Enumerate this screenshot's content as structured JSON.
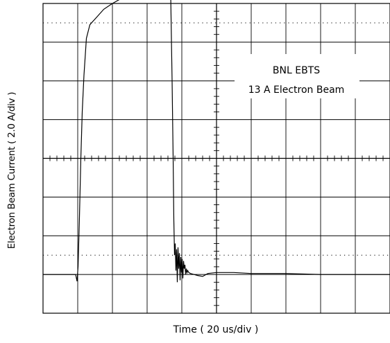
{
  "chart_data": {
    "type": "line",
    "title": "",
    "annotation": [
      "BNL  EBTS",
      "13 A  Electron Beam"
    ],
    "xlabel": "Time  ( 20 us/div )",
    "ylabel": "Electron Beam Current  ( 2.0  A/div )",
    "x_units_per_div": 20,
    "y_units_per_div": 2.0,
    "xlim": [
      0,
      200
    ],
    "ylim": [
      -2.0,
      14.0
    ],
    "grid": true,
    "series": [
      {
        "x": [
          0,
          18.8,
          19.6,
          20.2,
          21.0,
          21.8,
          22.6,
          23.6,
          25.0,
          27.0,
          29.0,
          31.0,
          35.0,
          40.0,
          45.0,
          50.0,
          55.0,
          60.0,
          65.0,
          70.0,
          73.6,
          74.4,
          75.0,
          75.4,
          75.8,
          76.2,
          76.6,
          77.0,
          77.4,
          77.8,
          78.2,
          78.6,
          79.0,
          79.4,
          79.8,
          80.2,
          80.6,
          81.0,
          81.4,
          81.8,
          82.2,
          82.6,
          83.0,
          83.4,
          84.0,
          85.0,
          87.0,
          89.0,
          92.0,
          95.0,
          100.0,
          110.0,
          120.0,
          140.0,
          160.0,
          180.0,
          200.0
        ],
        "values": [
          0.0,
          0.0,
          -0.35,
          0.4,
          3.0,
          6.0,
          8.4,
          10.3,
          12.2,
          12.9,
          13.1,
          13.3,
          13.7,
          14.0,
          14.25,
          14.35,
          14.45,
          14.5,
          14.5,
          14.5,
          14.4,
          10.0,
          6.0,
          2.8,
          1.0,
          1.6,
          0.2,
          1.3,
          -0.4,
          1.4,
          0.3,
          1.1,
          -0.3,
          0.9,
          0.1,
          0.8,
          -0.2,
          0.7,
          0.3,
          0.5,
          0.0,
          0.3,
          0.1,
          0.2,
          0.1,
          0.05,
          0.0,
          -0.05,
          -0.1,
          0.05,
          0.1,
          0.1,
          0.05,
          0.05,
          0.0,
          0.0,
          0.0
        ]
      }
    ]
  }
}
